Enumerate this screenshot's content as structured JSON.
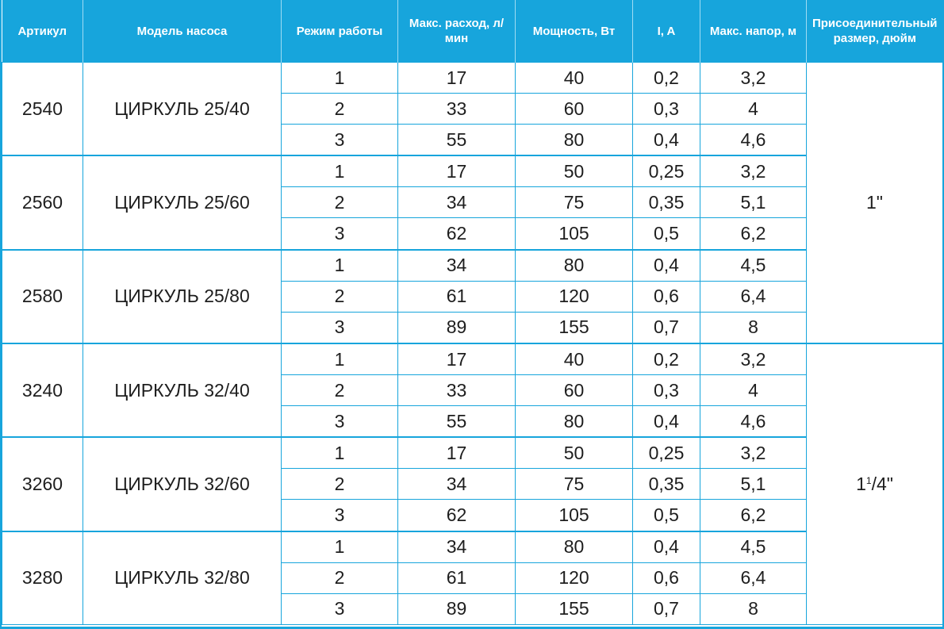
{
  "headers": {
    "article": "Артикул",
    "model": "Модель насоса",
    "mode": "Режим работы",
    "flow": "Макс. расход, л/мин",
    "power": "Мощность, Вт",
    "current": "I, A",
    "head": "Макс. напор, м",
    "connection": "Присоединительный размер, дюйм"
  },
  "connection_sizes": [
    {
      "text": "1\""
    },
    {
      "whole": "1",
      "num": "1",
      "den": "/4\""
    }
  ],
  "groups": [
    {
      "article": "2540",
      "model": "ЦИРКУЛЬ 25/40",
      "rows": [
        {
          "mode": "1",
          "flow": "17",
          "power": "40",
          "current": "0,2",
          "head": "3,2"
        },
        {
          "mode": "2",
          "flow": "33",
          "power": "60",
          "current": "0,3",
          "head": "4"
        },
        {
          "mode": "3",
          "flow": "55",
          "power": "80",
          "current": "0,4",
          "head": "4,6"
        }
      ]
    },
    {
      "article": "2560",
      "model": "ЦИРКУЛЬ 25/60",
      "rows": [
        {
          "mode": "1",
          "flow": "17",
          "power": "50",
          "current": "0,25",
          "head": "3,2"
        },
        {
          "mode": "2",
          "flow": "34",
          "power": "75",
          "current": "0,35",
          "head": "5,1"
        },
        {
          "mode": "3",
          "flow": "62",
          "power": "105",
          "current": "0,5",
          "head": "6,2"
        }
      ]
    },
    {
      "article": "2580",
      "model": "ЦИРКУЛЬ 25/80",
      "rows": [
        {
          "mode": "1",
          "flow": "34",
          "power": "80",
          "current": "0,4",
          "head": "4,5"
        },
        {
          "mode": "2",
          "flow": "61",
          "power": "120",
          "current": "0,6",
          "head": "6,4"
        },
        {
          "mode": "3",
          "flow": "89",
          "power": "155",
          "current": "0,7",
          "head": "8"
        }
      ]
    },
    {
      "article": "3240",
      "model": "ЦИРКУЛЬ 32/40",
      "rows": [
        {
          "mode": "1",
          "flow": "17",
          "power": "40",
          "current": "0,2",
          "head": "3,2"
        },
        {
          "mode": "2",
          "flow": "33",
          "power": "60",
          "current": "0,3",
          "head": "4"
        },
        {
          "mode": "3",
          "flow": "55",
          "power": "80",
          "current": "0,4",
          "head": "4,6"
        }
      ]
    },
    {
      "article": "3260",
      "model": "ЦИРКУЛЬ 32/60",
      "rows": [
        {
          "mode": "1",
          "flow": "17",
          "power": "50",
          "current": "0,25",
          "head": "3,2"
        },
        {
          "mode": "2",
          "flow": "34",
          "power": "75",
          "current": "0,35",
          "head": "5,1"
        },
        {
          "mode": "3",
          "flow": "62",
          "power": "105",
          "current": "0,5",
          "head": "6,2"
        }
      ]
    },
    {
      "article": "3280",
      "model": "ЦИРКУЛЬ 32/80",
      "rows": [
        {
          "mode": "1",
          "flow": "34",
          "power": "80",
          "current": "0,4",
          "head": "4,5"
        },
        {
          "mode": "2",
          "flow": "61",
          "power": "120",
          "current": "0,6",
          "head": "6,4"
        },
        {
          "mode": "3",
          "flow": "89",
          "power": "155",
          "current": "0,7",
          "head": "8"
        }
      ]
    }
  ]
}
